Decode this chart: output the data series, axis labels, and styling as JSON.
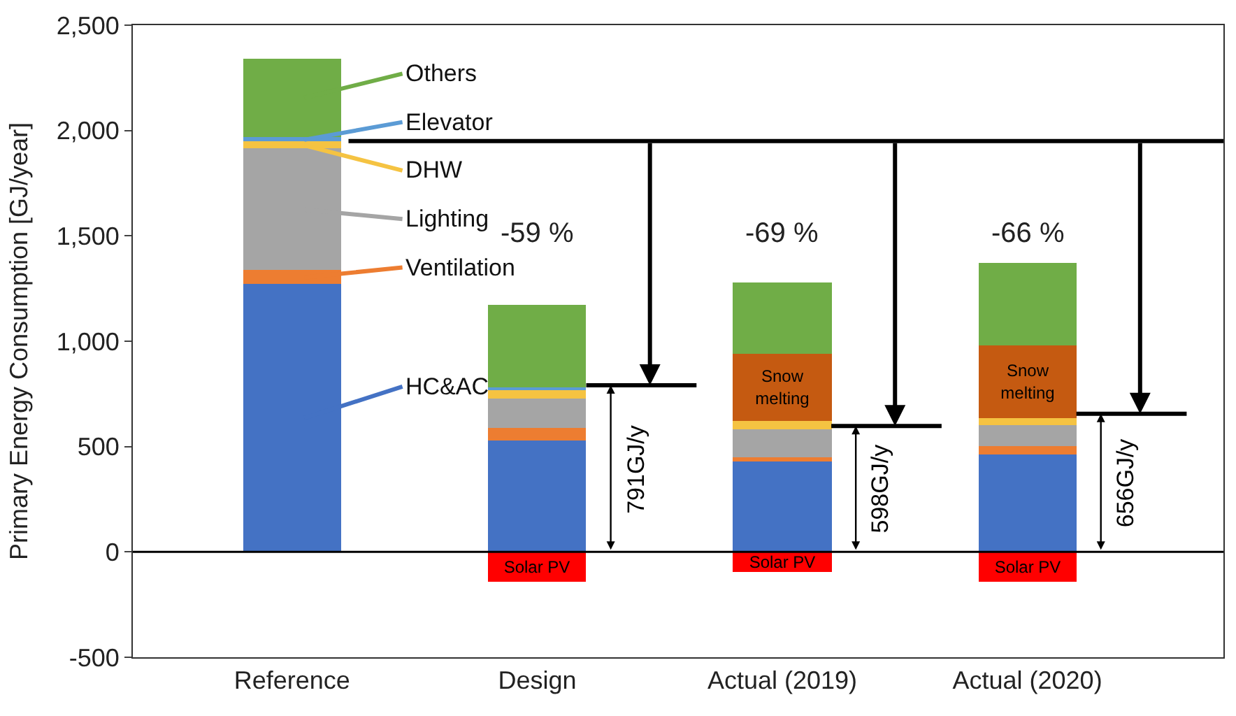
{
  "chart_data": {
    "type": "bar",
    "stacked": true,
    "ylabel": "Primary Energy Consumption [GJ/year]",
    "categories": [
      "Reference",
      "Design",
      "Actual (2019)",
      "Actual (2020)"
    ],
    "series": [
      {
        "name": "HC&AC",
        "color": "#4472c4",
        "values": [
          1270,
          530,
          430,
          465
        ]
      },
      {
        "name": "Ventilation",
        "color": "#ed7d31",
        "values": [
          66,
          60,
          20,
          35
        ]
      },
      {
        "name": "Lighting",
        "color": "#a5a5a5",
        "values": [
          577,
          140,
          130,
          100
        ]
      },
      {
        "name": "DHW",
        "color": "#f5c342",
        "values": [
          33,
          40,
          45,
          35
        ]
      },
      {
        "name": "Elevator",
        "color": "#5b9bd5",
        "values": [
          20,
          13,
          null,
          null
        ]
      },
      {
        "name": "Snow melting",
        "color": "#c55a11",
        "values": [
          null,
          null,
          315,
          345
        ]
      },
      {
        "name": "Others",
        "color": "#70ad47",
        "values": [
          378,
          390,
          340,
          390
        ]
      },
      {
        "name": "Solar PV",
        "color": "#ff0000",
        "values": [
          null,
          -140,
          -95,
          -140
        ]
      }
    ],
    "ylim": [
      -500,
      2500
    ],
    "yticks": [
      {
        "value": -500,
        "label": "-500"
      },
      0,
      500,
      {
        "value": 1000,
        "label": "1,000"
      },
      {
        "value": 1500,
        "label": "1,500"
      },
      {
        "value": 2000,
        "label": "2,000"
      },
      {
        "value": 2500,
        "label": "2,500"
      }
    ],
    "ref_lines": [
      {
        "axis": "y",
        "value": 0,
        "color": "#000000"
      },
      {
        "axis": "y",
        "value": 1950,
        "color": "#000000"
      },
      {
        "axis": "y",
        "value": 791,
        "label": "791GJ/y",
        "color": "#000000"
      },
      {
        "axis": "y",
        "value": 598,
        "label": "598GJ/y",
        "color": "#000000"
      },
      {
        "axis": "y",
        "value": 656,
        "label": "656GJ/y",
        "color": "#000000"
      }
    ],
    "annotations": [
      "-59 %",
      "-69 %",
      "-66 %"
    ],
    "legend": "top left"
  }
}
